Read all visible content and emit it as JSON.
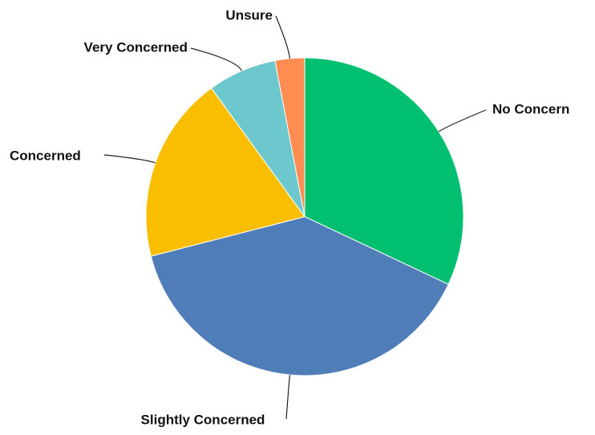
{
  "chart_data": {
    "type": "pie",
    "categories": [
      "No Concern",
      "Slightly Concerned",
      "Concerned",
      "Very Concerned",
      "Unsure"
    ],
    "values": [
      32,
      39,
      19,
      7,
      3
    ],
    "colors": [
      "#00bf6f",
      "#4f7db8",
      "#f9be00",
      "#6cc8cc",
      "#ff8c50"
    ]
  }
}
